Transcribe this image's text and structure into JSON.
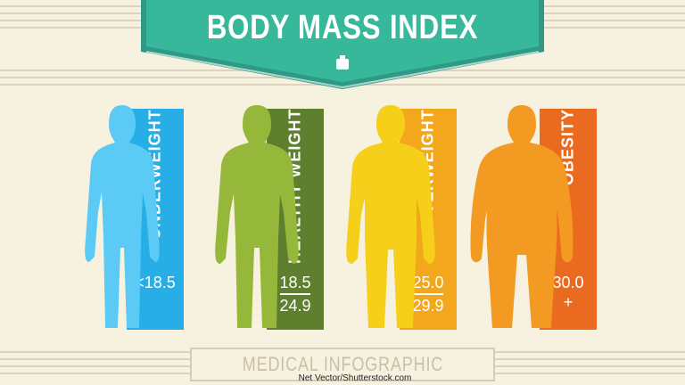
{
  "banner": {
    "title": "BODY MASS INDEX",
    "color": "#38b89b",
    "shadow_color": "#2f9985",
    "icon": "weight-icon"
  },
  "categories": [
    {
      "id": "underweight",
      "label": "UNDERWEIGHT",
      "range_lines": [
        "<18.5"
      ],
      "body_color": "#5bcbf5",
      "panel_color": "#27aee6"
    },
    {
      "id": "healthy",
      "label": "HEALTHY WEIGHT",
      "range_lines": [
        "18.5",
        "24.9"
      ],
      "body_color": "#96b83a",
      "panel_color": "#5e7f2e"
    },
    {
      "id": "overweight",
      "label": "OVERWEIGHT",
      "range_lines": [
        "25.0",
        "29.9"
      ],
      "body_color": "#f5cf1a",
      "panel_color": "#f2a71c"
    },
    {
      "id": "obesity",
      "label": "OBESITY",
      "range_lines": [
        "30.0",
        "+"
      ],
      "body_color": "#f39a22",
      "panel_color": "#ea6b1f"
    }
  ],
  "footer": {
    "label": "MEDICAL INFOGRAPHIC"
  },
  "credit": "Net Vector/Shutterstock.com"
}
